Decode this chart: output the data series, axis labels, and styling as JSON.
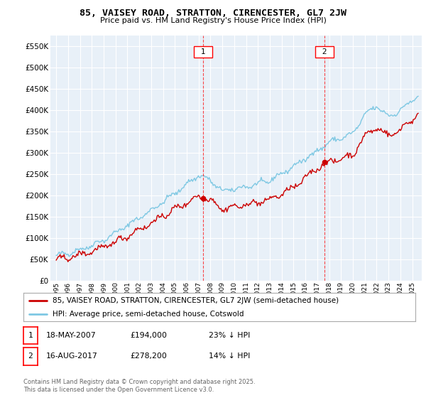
{
  "title": "85, VAISEY ROAD, STRATTON, CIRENCESTER, GL7 2JW",
  "subtitle": "Price paid vs. HM Land Registry's House Price Index (HPI)",
  "legend_line1": "85, VAISEY ROAD, STRATTON, CIRENCESTER, GL7 2JW (semi-detached house)",
  "legend_line2": "HPI: Average price, semi-detached house, Cotswold",
  "annotation1_date": "18-MAY-2007",
  "annotation1_price": "£194,000",
  "annotation1_note": "23% ↓ HPI",
  "annotation1_year": 2007.38,
  "annotation1_value": 194000,
  "annotation2_date": "16-AUG-2017",
  "annotation2_price": "£278,200",
  "annotation2_note": "14% ↓ HPI",
  "annotation2_year": 2017.62,
  "annotation2_value": 278200,
  "ylim_min": 0,
  "ylim_max": 575000,
  "xlim_min": 1994.5,
  "xlim_max": 2025.8,
  "hpi_color": "#7ec8e3",
  "price_color": "#cc0000",
  "plot_bg": "#e8f0f8",
  "grid_color": "#ffffff",
  "footer": "Contains HM Land Registry data © Crown copyright and database right 2025.\nThis data is licensed under the Open Government Licence v3.0.",
  "yticks": [
    0,
    50000,
    100000,
    150000,
    200000,
    250000,
    300000,
    350000,
    400000,
    450000,
    500000,
    550000
  ],
  "ytick_labels": [
    "£0",
    "£50K",
    "£100K",
    "£150K",
    "£200K",
    "£250K",
    "£300K",
    "£350K",
    "£400K",
    "£450K",
    "£500K",
    "£550K"
  ]
}
